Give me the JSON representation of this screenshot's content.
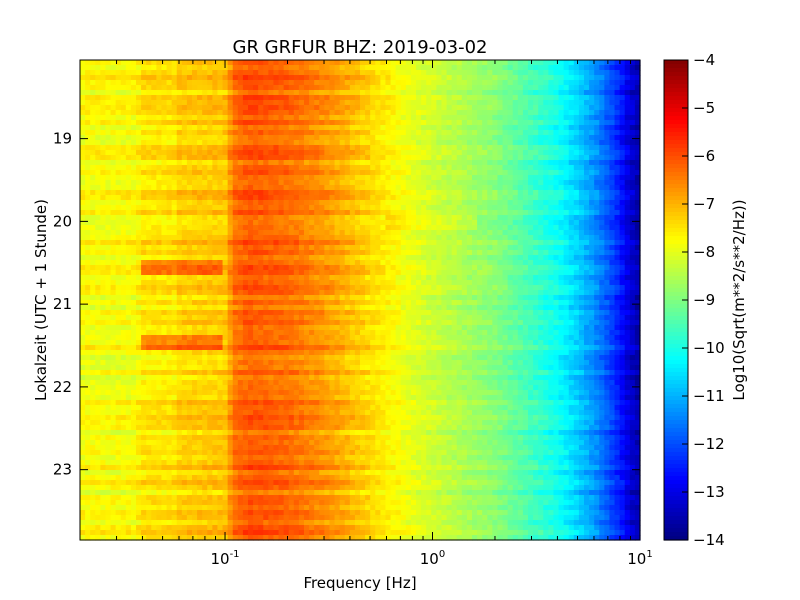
{
  "chart_data": {
    "type": "heatmap",
    "title": "GR GRFUR BHZ: 2019-03-02",
    "xlabel": "Frequency [Hz]",
    "ylabel": "Lokalzeit (UTC + 1 Stunde)",
    "colorbar_label": "Log10(Sqrt(m**2/s**2/Hz))",
    "x_scale": "log",
    "xlim": [
      0.02,
      10
    ],
    "x_ticks": [
      {
        "value": 0.1,
        "base": "10",
        "exp": "-1"
      },
      {
        "value": 1,
        "base": "10",
        "exp": "0"
      },
      {
        "value": 10,
        "base": "10",
        "exp": "1"
      }
    ],
    "ylim": [
      18.05,
      23.85
    ],
    "y_inverted": true,
    "y_ticks": [
      {
        "value": 19,
        "label": "19"
      },
      {
        "value": 20,
        "label": "20"
      },
      {
        "value": 21,
        "label": "21"
      },
      {
        "value": 22,
        "label": "22"
      },
      {
        "value": 23,
        "label": "23"
      }
    ],
    "clim": [
      -14,
      -4
    ],
    "colormap": "jet",
    "colorbar_ticks": [
      {
        "value": -4,
        "label": "−4"
      },
      {
        "value": -5,
        "label": "−5"
      },
      {
        "value": -6,
        "label": "−6"
      },
      {
        "value": -7,
        "label": "−7"
      },
      {
        "value": -8,
        "label": "−8"
      },
      {
        "value": -9,
        "label": "−9"
      },
      {
        "value": -10,
        "label": "−10"
      },
      {
        "value": -11,
        "label": "−11"
      },
      {
        "value": -12,
        "label": "−12"
      },
      {
        "value": -13,
        "label": "−13"
      },
      {
        "value": -14,
        "label": "−14"
      }
    ],
    "frequency_profile": {
      "freq_hz": [
        0.02,
        0.037,
        0.04,
        0.058,
        0.06,
        0.1,
        0.11,
        0.13,
        0.2,
        0.3,
        0.5,
        0.8,
        1.2,
        2,
        3,
        4,
        5,
        6,
        7,
        8,
        9,
        10
      ],
      "log_psd": [
        -7.8,
        -7.8,
        -7.5,
        -7.5,
        -7.3,
        -7.2,
        -6.4,
        -6.1,
        -6.3,
        -6.7,
        -7.4,
        -8.0,
        -8.4,
        -8.9,
        -9.6,
        -10.1,
        -10.7,
        -11.3,
        -11.9,
        -12.5,
        -13.2,
        -13.6
      ]
    },
    "time_events": [
      {
        "hour": 20.55,
        "freq_min_hz": 0.04,
        "freq_max_hz": 0.1,
        "delta_log_psd": 0.9
      },
      {
        "hour": 21.45,
        "freq_min_hz": 0.04,
        "freq_max_hz": 0.1,
        "delta_log_psd": 0.9
      },
      {
        "hour": 20.0,
        "freq_min_hz": 0.6,
        "freq_max_hz": 1.6,
        "delta_log_psd": 0.35
      }
    ]
  }
}
